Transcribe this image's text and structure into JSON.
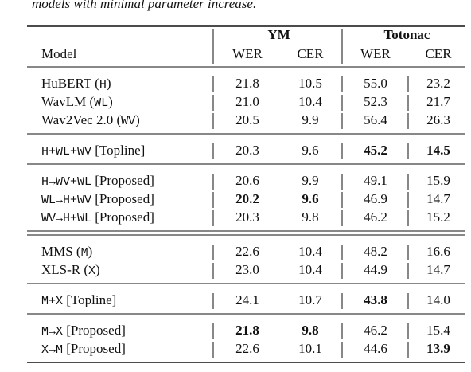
{
  "caption_fragment": "models with minimal parameter increase.",
  "header": {
    "model": "Model",
    "groups": [
      {
        "name": "YM",
        "columns": [
          "WER",
          "CER"
        ]
      },
      {
        "name": "Totonac",
        "columns": [
          "WER",
          "CER"
        ]
      }
    ]
  },
  "table": {
    "sections": [
      {
        "groups": [
          [
            {
              "model": [
                {
                  "text": "HuBERT ("
                },
                {
                  "text": "H",
                  "mono": true
                },
                {
                  "text": ")"
                }
              ],
              "values": [
                "21.8",
                "10.5",
                "55.0",
                "23.2"
              ],
              "bold": []
            },
            {
              "model": [
                {
                  "text": "WavLM ("
                },
                {
                  "text": "WL",
                  "mono": true
                },
                {
                  "text": ")"
                }
              ],
              "values": [
                "21.0",
                "10.4",
                "52.3",
                "21.7"
              ],
              "bold": []
            },
            {
              "model": [
                {
                  "text": "Wav2Vec 2.0 ("
                },
                {
                  "text": "WV",
                  "mono": true
                },
                {
                  "text": ")"
                }
              ],
              "values": [
                "20.5",
                "9.9",
                "56.4",
                "26.3"
              ],
              "bold": []
            }
          ],
          [
            {
              "model": [
                {
                  "text": "H+WL+WV",
                  "mono": true
                },
                {
                  "text": " [Topline]"
                }
              ],
              "values": [
                "20.3",
                "9.6",
                "45.2",
                "14.5"
              ],
              "bold": [
                2,
                3
              ]
            }
          ],
          [
            {
              "model": [
                {
                  "text": "H→WV+WL",
                  "mono": true
                },
                {
                  "text": " [Proposed]"
                }
              ],
              "values": [
                "20.6",
                "9.9",
                "49.1",
                "15.9"
              ],
              "bold": []
            },
            {
              "model": [
                {
                  "text": "WL→H+WV",
                  "mono": true
                },
                {
                  "text": " [Proposed]"
                }
              ],
              "values": [
                "20.2",
                "9.6",
                "46.9",
                "14.7"
              ],
              "bold": [
                0,
                1
              ]
            },
            {
              "model": [
                {
                  "text": "WV→H+WL",
                  "mono": true
                },
                {
                  "text": " [Proposed]"
                }
              ],
              "values": [
                "20.3",
                "9.8",
                "46.2",
                "15.2"
              ],
              "bold": []
            }
          ]
        ]
      },
      {
        "groups": [
          [
            {
              "model": [
                {
                  "text": "MMS ("
                },
                {
                  "text": "M",
                  "mono": true
                },
                {
                  "text": ")"
                }
              ],
              "values": [
                "22.6",
                "10.4",
                "48.2",
                "16.6"
              ],
              "bold": []
            },
            {
              "model": [
                {
                  "text": "XLS-R ("
                },
                {
                  "text": "X",
                  "mono": true
                },
                {
                  "text": ")"
                }
              ],
              "values": [
                "23.0",
                "10.4",
                "44.9",
                "14.7"
              ],
              "bold": []
            }
          ],
          [
            {
              "model": [
                {
                  "text": "M+X",
                  "mono": true
                },
                {
                  "text": " [Topline]"
                }
              ],
              "values": [
                "24.1",
                "10.7",
                "43.8",
                "14.0"
              ],
              "bold": [
                2
              ]
            }
          ],
          [
            {
              "model": [
                {
                  "text": "M→X",
                  "mono": true
                },
                {
                  "text": " [Proposed]"
                }
              ],
              "values": [
                "21.8",
                "9.8",
                "46.2",
                "15.4"
              ],
              "bold": [
                0,
                1
              ]
            },
            {
              "model": [
                {
                  "text": "X→M",
                  "mono": true
                },
                {
                  "text": " [Proposed]"
                }
              ],
              "values": [
                "22.6",
                "10.1",
                "44.6",
                "13.9"
              ],
              "bold": [
                3
              ]
            }
          ]
        ]
      }
    ]
  }
}
